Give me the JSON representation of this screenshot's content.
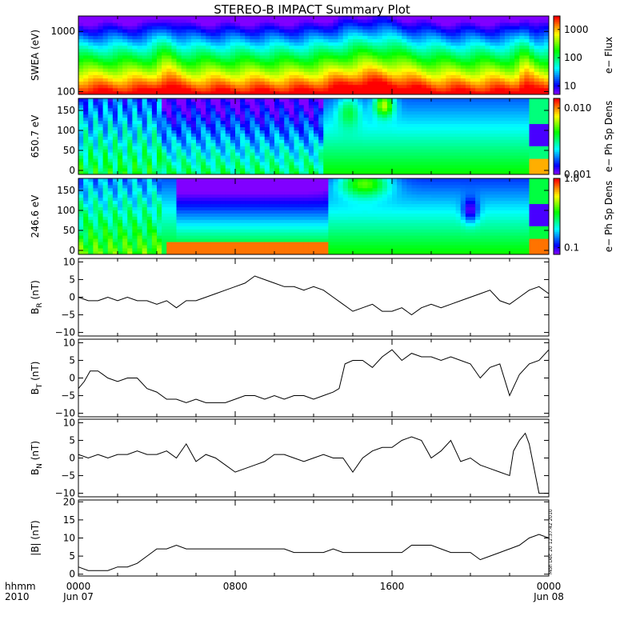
{
  "title": "STEREO-B IMPACT Summary Plot",
  "stamp": "Mon Dec 20 12:37:42 2010",
  "time_axis": {
    "row1_label": "hhmm",
    "row2_label": "2010",
    "ticks": [
      {
        "hours": 0,
        "label1": "0000",
        "label2": "Jun 07"
      },
      {
        "hours": 8,
        "label1": "0800",
        "label2": ""
      },
      {
        "hours": 16,
        "label1": "1600",
        "label2": ""
      },
      {
        "hours": 24,
        "label1": "0000",
        "label2": "Jun 08"
      }
    ]
  },
  "chart_data": [
    {
      "type": "heatmap",
      "id": "swea",
      "ylabel": "SWEA (eV)",
      "yscale": "log",
      "ylim": [
        90,
        1800
      ],
      "yticks": [
        100,
        1000
      ],
      "ytick_labels": [
        "100",
        "1000"
      ],
      "cbar_label": "e− Flux",
      "cbar_scale": "log",
      "cbar_range": [
        5,
        3000
      ],
      "cbar_ticks": [
        10,
        100,
        1000
      ],
      "cbar_tick_labels": [
        "10",
        "100",
        "1000"
      ],
      "description_levels": "high flux (red/orange) at low energy ~100 eV, decreasing to blue above ~1000 eV; enhanced low-energy flux near 04:30, 13:00-17:00 and 22:30"
    },
    {
      "type": "heatmap",
      "id": "pad650",
      "ylabel": "650.7 eV",
      "ylim": [
        -10,
        180
      ],
      "yticks": [
        0,
        50,
        100,
        150
      ],
      "ytick_labels": [
        "0",
        "50",
        "100",
        "150"
      ],
      "cbar_label": "e− Ph Sp Dens",
      "cbar_scale": "log",
      "cbar_range": [
        0.001,
        0.014
      ],
      "cbar_ticks": [
        0.001,
        0.01
      ],
      "cbar_tick_labels": [
        "0.001",
        "0.010"
      ],
      "features": "blue at high pitch angles 00-12h, yellow/red patch near 150-180 deg at 15:30-16:00, blue band 70-110 deg after 23:00, red near 0 deg at 23:30"
    },
    {
      "type": "heatmap",
      "id": "pad246",
      "ylabel": "246.6 eV",
      "ylim": [
        -10,
        180
      ],
      "yticks": [
        0,
        50,
        100,
        150
      ],
      "ytick_labels": [
        "0",
        "50",
        "100",
        "150"
      ],
      "cbar_label": "e− Ph Sp Dens",
      "cbar_scale": "log",
      "cbar_range": [
        0.08,
        1.0
      ],
      "cbar_ticks": [
        0.1,
        1.0
      ],
      "cbar_tick_labels": [
        "0.1",
        "1.0"
      ],
      "features": "blue/purple 80-170 deg from 04:30 to 12:30, yellow/red 150-180 deg at 13:00-16:30, blue 70-120 deg after 23:00"
    },
    {
      "type": "line",
      "id": "br",
      "ylabel_main": "B",
      "ylabel_sub": "R",
      "ylabel_unit": " (nT)",
      "ylim": [
        -11,
        11
      ],
      "yticks": [
        -10,
        -5,
        0,
        5,
        10
      ],
      "ytick_labels": [
        "−10",
        "−5",
        "0",
        "5",
        "10"
      ],
      "x": [
        0,
        0.5,
        1,
        1.5,
        2,
        2.5,
        3,
        3.5,
        4,
        4.5,
        5,
        5.5,
        6,
        6.5,
        7,
        7.5,
        8,
        8.5,
        9,
        9.5,
        10,
        10.5,
        11,
        11.5,
        12,
        12.5,
        13,
        13.5,
        14,
        14.5,
        15,
        15.5,
        16,
        16.5,
        17,
        17.5,
        18,
        18.5,
        19,
        19.5,
        20,
        20.5,
        21,
        21.5,
        22,
        22.5,
        23,
        23.5,
        24
      ],
      "y": [
        0,
        -1,
        -1,
        0,
        -1,
        0,
        -1,
        -1,
        -2,
        -1,
        -3,
        -1,
        -1,
        0,
        1,
        2,
        3,
        4,
        6,
        5,
        4,
        3,
        3,
        2,
        3,
        2,
        0,
        -2,
        -4,
        -3,
        -2,
        -4,
        -4,
        -3,
        -5,
        -3,
        -2,
        -3,
        -2,
        -1,
        0,
        1,
        2,
        -1,
        -2,
        0,
        2,
        3,
        1
      ],
      "x_unit": "hours since 2010-06-07 00:00"
    },
    {
      "type": "line",
      "id": "bt",
      "ylabel_main": "B",
      "ylabel_sub": "T",
      "ylabel_unit": " (nT)",
      "ylim": [
        -11,
        11
      ],
      "yticks": [
        -10,
        -5,
        0,
        5,
        10
      ],
      "ytick_labels": [
        "−10",
        "−5",
        "0",
        "5",
        "10"
      ],
      "x": [
        0,
        0.3,
        0.6,
        1,
        1.5,
        2,
        2.5,
        3,
        3.5,
        4,
        4.5,
        5,
        5.5,
        6,
        6.5,
        7,
        7.5,
        8,
        8.5,
        9,
        9.5,
        10,
        10.5,
        11,
        11.5,
        12,
        12.5,
        13,
        13.3,
        13.6,
        14,
        14.5,
        15,
        15.5,
        16,
        16.5,
        17,
        17.5,
        18,
        18.5,
        19,
        19.5,
        20,
        20.5,
        21,
        21.5,
        22,
        22.5,
        23,
        23.5,
        24
      ],
      "y": [
        -3,
        -1,
        2,
        2,
        0,
        -1,
        0,
        0,
        -3,
        -4,
        -6,
        -6,
        -7,
        -6,
        -7,
        -7,
        -7,
        -6,
        -5,
        -5,
        -6,
        -5,
        -6,
        -5,
        -5,
        -6,
        -5,
        -4,
        -3,
        4,
        5,
        5,
        3,
        6,
        8,
        5,
        7,
        6,
        6,
        5,
        6,
        5,
        4,
        0,
        3,
        4,
        -5,
        1,
        4,
        5,
        8
      ],
      "x_unit": "hours since 2010-06-07 00:00"
    },
    {
      "type": "line",
      "id": "bn",
      "ylabel_main": "B",
      "ylabel_sub": "N",
      "ylabel_unit": " (nT)",
      "ylim": [
        -11,
        11
      ],
      "yticks": [
        -10,
        -5,
        0,
        5,
        10
      ],
      "ytick_labels": [
        "−10",
        "−5",
        "0",
        "5",
        "10"
      ],
      "x": [
        0,
        0.5,
        1,
        1.5,
        2,
        2.5,
        3,
        3.5,
        4,
        4.5,
        5,
        5.5,
        6,
        6.5,
        7,
        7.5,
        8,
        8.5,
        9,
        9.5,
        10,
        10.5,
        11,
        11.5,
        12,
        12.5,
        13,
        13.5,
        14,
        14.5,
        15,
        15.5,
        16,
        16.5,
        17,
        17.5,
        18,
        18.5,
        19,
        19.5,
        20,
        20.5,
        21,
        21.5,
        22,
        22.2,
        22.5,
        22.8,
        23,
        23.5,
        24
      ],
      "y": [
        1,
        0,
        1,
        0,
        1,
        1,
        2,
        1,
        1,
        2,
        0,
        4,
        -1,
        1,
        0,
        -2,
        -4,
        -3,
        -2,
        -1,
        1,
        1,
        0,
        -1,
        0,
        1,
        0,
        0,
        -4,
        0,
        2,
        3,
        3,
        5,
        6,
        5,
        0,
        2,
        5,
        -1,
        0,
        -2,
        -3,
        -4,
        -5,
        2,
        5,
        7,
        4,
        -10,
        -10
      ],
      "x_unit": "hours since 2010-06-07 00:00"
    },
    {
      "type": "line",
      "id": "bmag",
      "ylabel_main": "|B| (nT)",
      "ylim": [
        -0.5,
        20.5
      ],
      "yticks": [
        0,
        5,
        10,
        15,
        20
      ],
      "ytick_labels": [
        "0",
        "5",
        "10",
        "15",
        "20"
      ],
      "x": [
        0,
        0.5,
        1,
        1.5,
        2,
        2.5,
        3,
        3.5,
        4,
        4.5,
        5,
        5.5,
        6,
        6.5,
        7,
        7.5,
        8,
        8.5,
        9,
        9.5,
        10,
        10.5,
        11,
        11.5,
        12,
        12.5,
        13,
        13.5,
        14,
        14.5,
        15,
        15.5,
        16,
        16.5,
        17,
        17.5,
        18,
        18.5,
        19,
        19.5,
        20,
        20.5,
        21,
        21.5,
        22,
        22.5,
        23,
        23.5,
        24
      ],
      "y": [
        2,
        1,
        1,
        1,
        2,
        2,
        3,
        5,
        7,
        7,
        8,
        7,
        7,
        7,
        7,
        7,
        7,
        7,
        7,
        7,
        7,
        7,
        6,
        6,
        6,
        6,
        7,
        6,
        6,
        6,
        6,
        6,
        6,
        6,
        8,
        8,
        8,
        7,
        6,
        6,
        6,
        4,
        5,
        6,
        7,
        8,
        10,
        11,
        10
      ],
      "x_unit": "hours since 2010-06-07 00:00"
    }
  ]
}
